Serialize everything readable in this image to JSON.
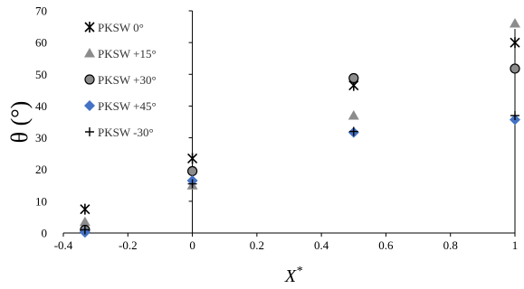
{
  "chart_data": {
    "type": "scatter",
    "title": "",
    "xlabel": "X*",
    "ylabel": "θ (°)",
    "xlim": [
      -0.4,
      1.0
    ],
    "ylim": [
      0,
      70
    ],
    "xticks": [
      "-0.4",
      "-0.2",
      "0",
      "0.2",
      "0.4",
      "0.6",
      "0.8",
      "1"
    ],
    "yticks": [
      "0",
      "10",
      "20",
      "30",
      "40",
      "50",
      "60",
      "70"
    ],
    "grid": false,
    "legend_position": "top-left",
    "series": [
      {
        "name": "PKSW 0°",
        "marker": "asterisk",
        "color": "#000000",
        "points": [
          [
            -0.333,
            7.5
          ],
          [
            0.0,
            23.5
          ],
          [
            0.5,
            46.5
          ],
          [
            1.0,
            60.0
          ]
        ]
      },
      {
        "name": "PKSW +15°",
        "marker": "triangle",
        "color": "#8c8c8c",
        "points": [
          [
            -0.333,
            3.5
          ],
          [
            0.0,
            15.0
          ],
          [
            0.5,
            37.0
          ],
          [
            1.0,
            66.0
          ]
        ]
      },
      {
        "name": "PKSW +30°",
        "marker": "circle",
        "color": "#8c8c8c",
        "points": [
          [
            -0.333,
            1.0
          ],
          [
            0.0,
            19.5
          ],
          [
            0.5,
            48.8
          ],
          [
            1.0,
            51.8
          ]
        ]
      },
      {
        "name": "PKSW +45°",
        "marker": "diamond",
        "color": "#4472c4",
        "points": [
          [
            -0.333,
            0.2
          ],
          [
            0.0,
            16.5
          ],
          [
            0.5,
            31.7
          ],
          [
            1.0,
            35.7
          ]
        ]
      },
      {
        "name": "PKSW -30°",
        "marker": "plus",
        "color": "#000000",
        "points": [
          [
            -0.333,
            1.0
          ],
          [
            0.0,
            15.5
          ],
          [
            0.5,
            32.0
          ],
          [
            1.0,
            37.0
          ]
        ]
      }
    ]
  }
}
